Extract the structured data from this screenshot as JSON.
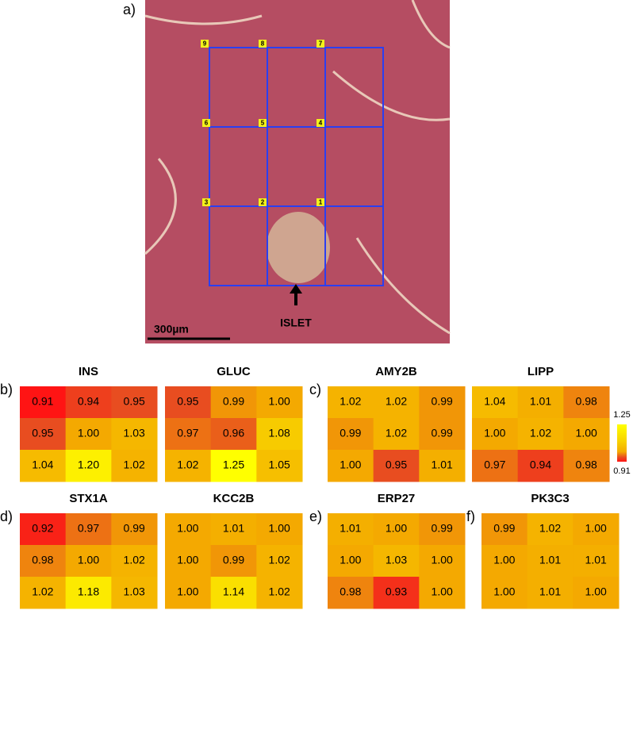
{
  "image": {
    "label": "a)",
    "grid_labels": [
      "9",
      "8",
      "7",
      "6",
      "5",
      "4",
      "3",
      "2",
      "1"
    ],
    "annotation": "ISLET",
    "scale_bar": "300µm"
  },
  "colorbar": {
    "zlim": [
      0.91,
      1.25
    ],
    "zticks": [
      0.91,
      1.25
    ]
  },
  "chart_data": [
    {
      "type": "heatmap",
      "label": "b)",
      "title": "INS",
      "values": [
        [
          0.91,
          0.94,
          0.95
        ],
        [
          0.95,
          1.0,
          1.03
        ],
        [
          1.04,
          1.2,
          1.02
        ]
      ],
      "value_labels": [
        [
          "0.91",
          "0.94",
          "0.95"
        ],
        [
          "0.95",
          "1.00",
          "1.03"
        ],
        [
          "1.04",
          "1.20",
          "1.02"
        ]
      ]
    },
    {
      "type": "heatmap",
      "title": "GLUC",
      "values": [
        [
          0.95,
          0.99,
          1.0
        ],
        [
          0.97,
          0.96,
          1.08
        ],
        [
          1.02,
          1.25,
          1.05
        ]
      ],
      "value_labels": [
        [
          "0.95",
          "0.99",
          "1.00"
        ],
        [
          "0.97",
          "0.96",
          "1.08"
        ],
        [
          "1.02",
          "1.25",
          "1.05"
        ]
      ]
    },
    {
      "type": "heatmap",
      "label": "c)",
      "title": "AMY2B",
      "values": [
        [
          1.02,
          1.02,
          0.99
        ],
        [
          0.99,
          1.02,
          0.99
        ],
        [
          1.0,
          0.95,
          1.01
        ]
      ],
      "value_labels": [
        [
          "1.02",
          "1.02",
          "0.99"
        ],
        [
          "0.99",
          "1.02",
          "0.99"
        ],
        [
          "1.00",
          "0.95",
          "1.01"
        ]
      ]
    },
    {
      "type": "heatmap",
      "title": "LIPP",
      "values": [
        [
          1.04,
          1.01,
          0.98
        ],
        [
          1.0,
          1.02,
          1.0
        ],
        [
          0.97,
          0.94,
          0.98
        ]
      ],
      "value_labels": [
        [
          "1.04",
          "1.01",
          "0.98"
        ],
        [
          "1.00",
          "1.02",
          "1.00"
        ],
        [
          "0.97",
          "0.94",
          "0.98"
        ]
      ]
    },
    {
      "type": "heatmap",
      "label": "d)",
      "title": "STX1A",
      "values": [
        [
          0.92,
          0.97,
          0.99
        ],
        [
          0.98,
          1.0,
          1.02
        ],
        [
          1.02,
          1.18,
          1.03
        ]
      ],
      "value_labels": [
        [
          "0.92",
          "0.97",
          "0.99"
        ],
        [
          "0.98",
          "1.00",
          "1.02"
        ],
        [
          "1.02",
          "1.18",
          "1.03"
        ]
      ]
    },
    {
      "type": "heatmap",
      "title": "KCC2B",
      "values": [
        [
          1.0,
          1.01,
          1.0
        ],
        [
          1.0,
          0.99,
          1.02
        ],
        [
          1.0,
          1.14,
          1.02
        ]
      ],
      "value_labels": [
        [
          "1.00",
          "1.01",
          "1.00"
        ],
        [
          "1.00",
          "0.99",
          "1.02"
        ],
        [
          "1.00",
          "1.14",
          "1.02"
        ]
      ]
    },
    {
      "type": "heatmap",
      "label": "e)",
      "title": "ERP27",
      "values": [
        [
          1.01,
          1.0,
          0.99
        ],
        [
          1.0,
          1.03,
          1.0
        ],
        [
          0.98,
          0.93,
          1.0
        ]
      ],
      "value_labels": [
        [
          "1.01",
          "1.00",
          "0.99"
        ],
        [
          "1.00",
          "1.03",
          "1.00"
        ],
        [
          "0.98",
          "0.93",
          "1.00"
        ]
      ]
    },
    {
      "type": "heatmap",
      "label": "f)",
      "title": "PK3C3",
      "values": [
        [
          0.99,
          1.02,
          1.0
        ],
        [
          1.0,
          1.01,
          1.01
        ],
        [
          1.0,
          1.01,
          1.0
        ]
      ],
      "value_labels": [
        [
          "0.99",
          "1.02",
          "1.00"
        ],
        [
          "1.00",
          "1.01",
          "1.01"
        ],
        [
          "1.00",
          "1.01",
          "1.00"
        ]
      ]
    }
  ]
}
